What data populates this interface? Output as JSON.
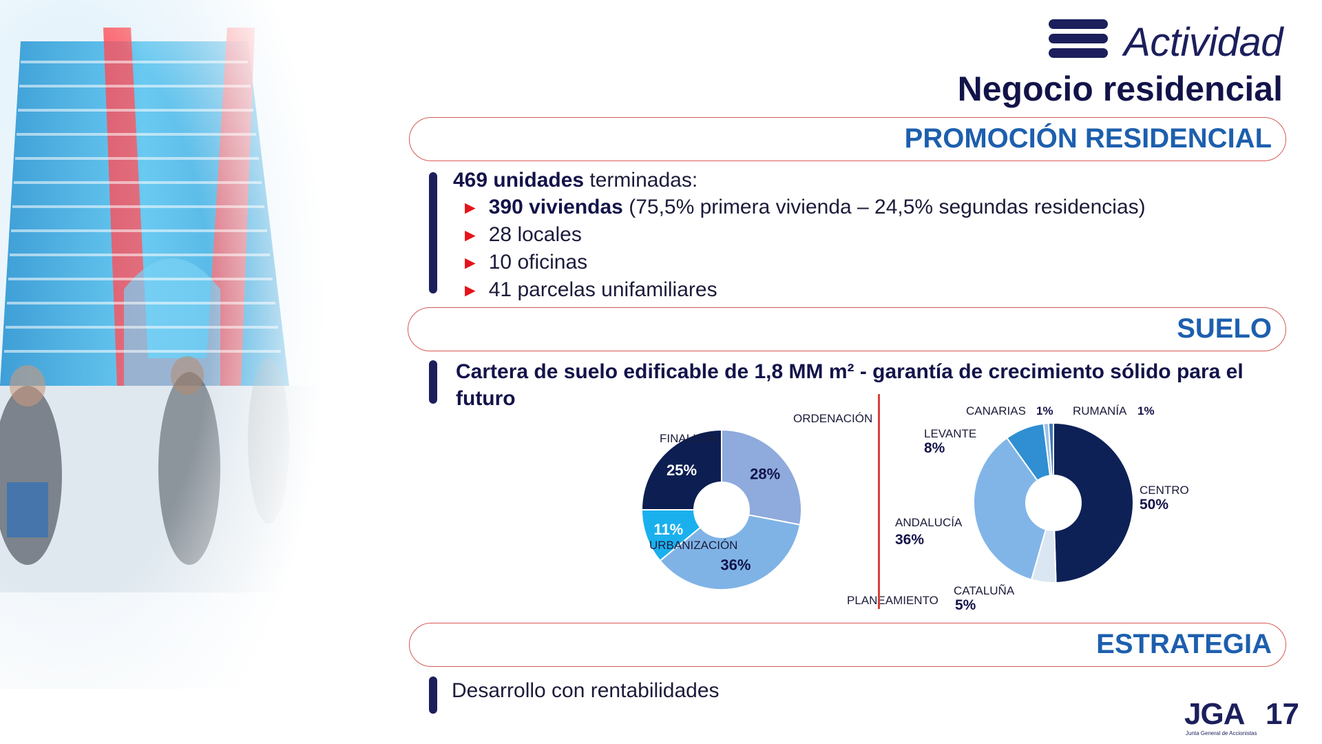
{
  "header": {
    "section_label": "Actividad",
    "title": "Negocio residencial"
  },
  "banners": {
    "promocion": "PROMOCIÓN RESIDENCIAL",
    "suelo": "SUELO",
    "estrategia": "ESTRATEGIA"
  },
  "promocion": {
    "units_bold": "469 unidades",
    "units_rest": " terminadas:",
    "items": [
      {
        "bold": "390 viviendas",
        "rest": " (75,5% primera vivienda – 24,5% segundas residencias)"
      },
      {
        "bold": "",
        "rest": "28 locales"
      },
      {
        "bold": "",
        "rest": "10 oficinas"
      },
      {
        "bold": "",
        "rest": "41 parcelas unifamiliares"
      }
    ],
    "bullet_glyph": "►"
  },
  "suelo": {
    "headline": "Cartera de suelo edificable de 1,8 MM m² - garantía de crecimiento sólido para el futuro"
  },
  "chart_data": [
    {
      "type": "pie",
      "donut": true,
      "categories": [
        "ORDENACIÓN",
        "PLANEAMIENTO",
        "URBANIZACIÓN",
        "FINALISTA"
      ],
      "values": [
        28,
        36,
        11,
        25
      ],
      "value_labels": [
        "28%",
        "36%",
        "11%",
        "25%"
      ],
      "colors": [
        "#8faadc",
        "#7fb3e6",
        "#1ab0ee",
        "#0d1e52"
      ],
      "label_colors": [
        "#13134a",
        "#13134a",
        "#ffffff",
        "#ffffff"
      ]
    },
    {
      "type": "pie",
      "donut": true,
      "categories": [
        "CENTRO",
        "CATALUÑA",
        "ANDALUCÍA",
        "LEVANTE",
        "CANARIAS",
        "RUMANÍA"
      ],
      "values": [
        50,
        5,
        36,
        8,
        1,
        1
      ],
      "value_labels": [
        "50%",
        "5%",
        "36%",
        "8%",
        "1%",
        "1%"
      ],
      "colors": [
        "#0d2157",
        "#dbe6f3",
        "#82b5e7",
        "#2f8fd2",
        "#9cc1e6",
        "#3d78b5"
      ]
    }
  ],
  "estrategia": {
    "text": "Desarrollo con rentabilidades"
  },
  "logo": {
    "main": "JGA",
    "year": "17",
    "subtitle": "Junta General de Accionistas"
  },
  "colors": {
    "navy": "#1c1f5c",
    "blue_heading": "#1d5fae",
    "accent_red": "#e3141a",
    "banner_border": "#d55a55"
  }
}
